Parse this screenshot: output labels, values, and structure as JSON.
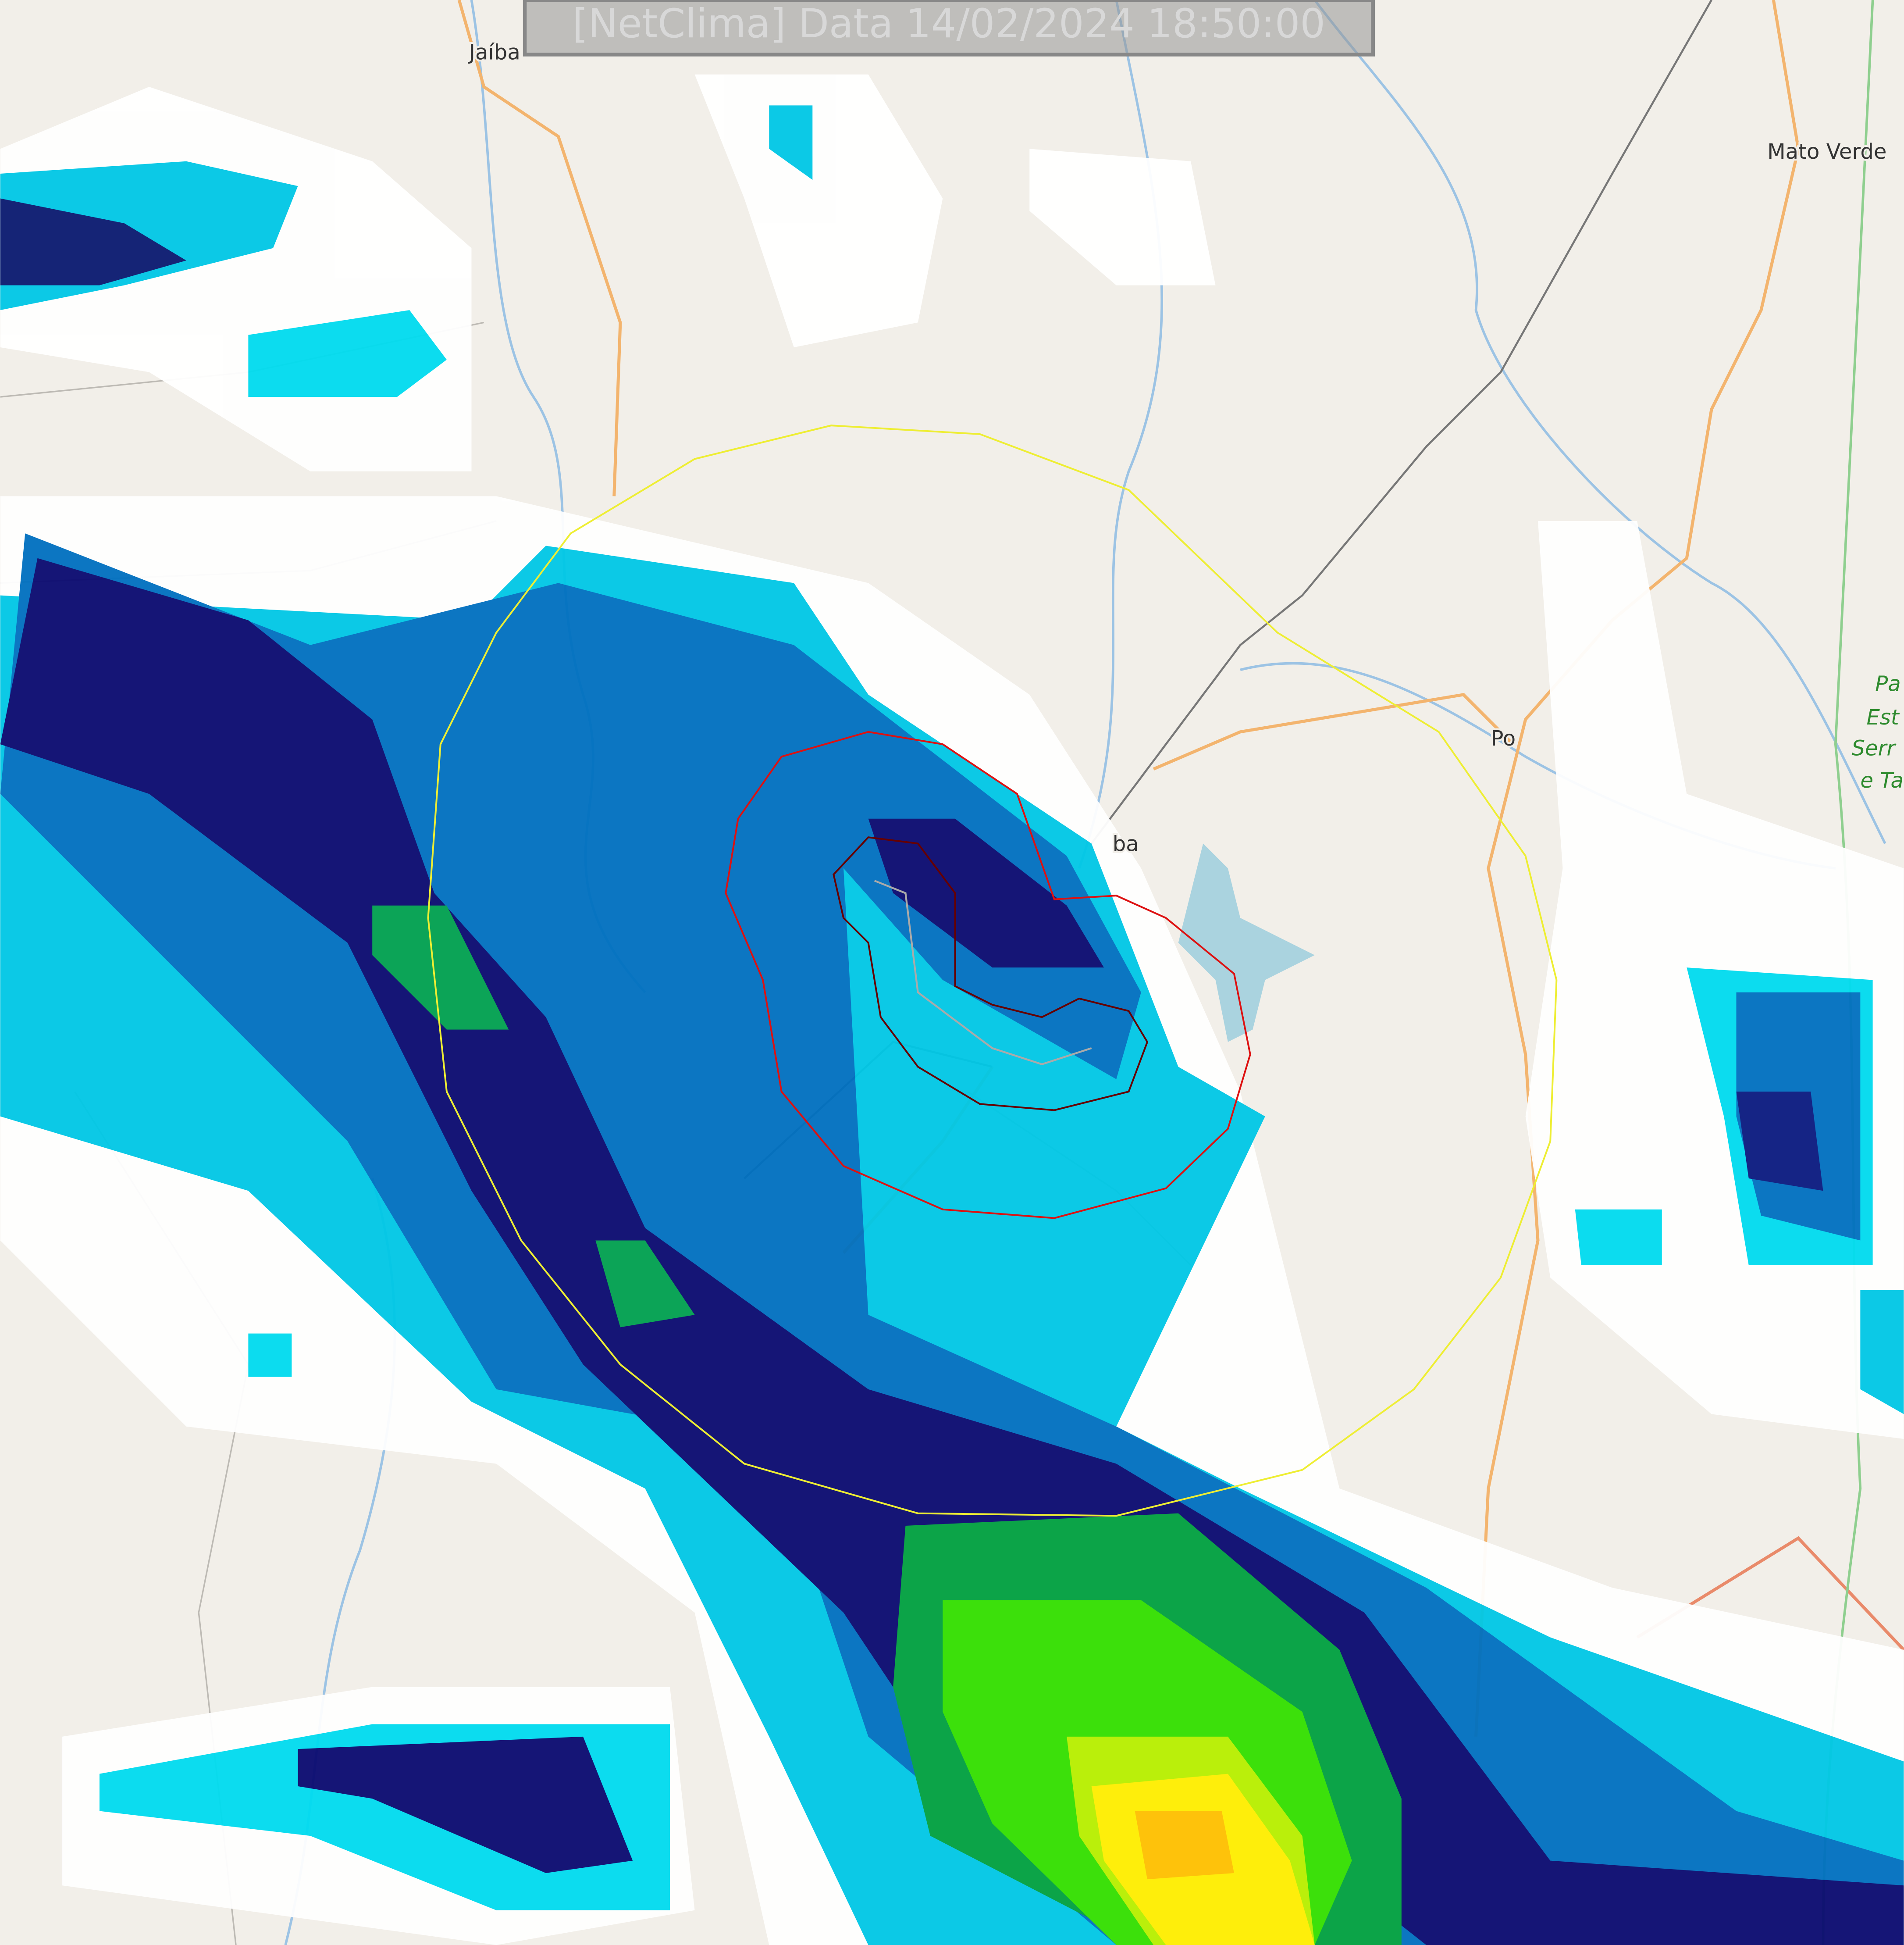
{
  "header": {
    "title": "[NetClima] Data 14/02/2024 18:50:00"
  },
  "places": [
    "Jaíba",
    "Mato Verde",
    "Po",
    "ba"
  ],
  "park": [
    "Pa",
    "Est",
    "Serr",
    "e Ta"
  ]
}
